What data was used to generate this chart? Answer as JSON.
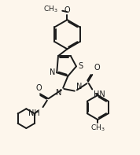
{
  "bg_color": "#fdf6ec",
  "line_color": "#1a1a1a",
  "line_width": 1.4,
  "font_size": 7.0,
  "dpi": 100,
  "figw": 1.78,
  "figh": 1.97,
  "xlim": [
    0,
    10
  ],
  "ylim": [
    0,
    11
  ]
}
